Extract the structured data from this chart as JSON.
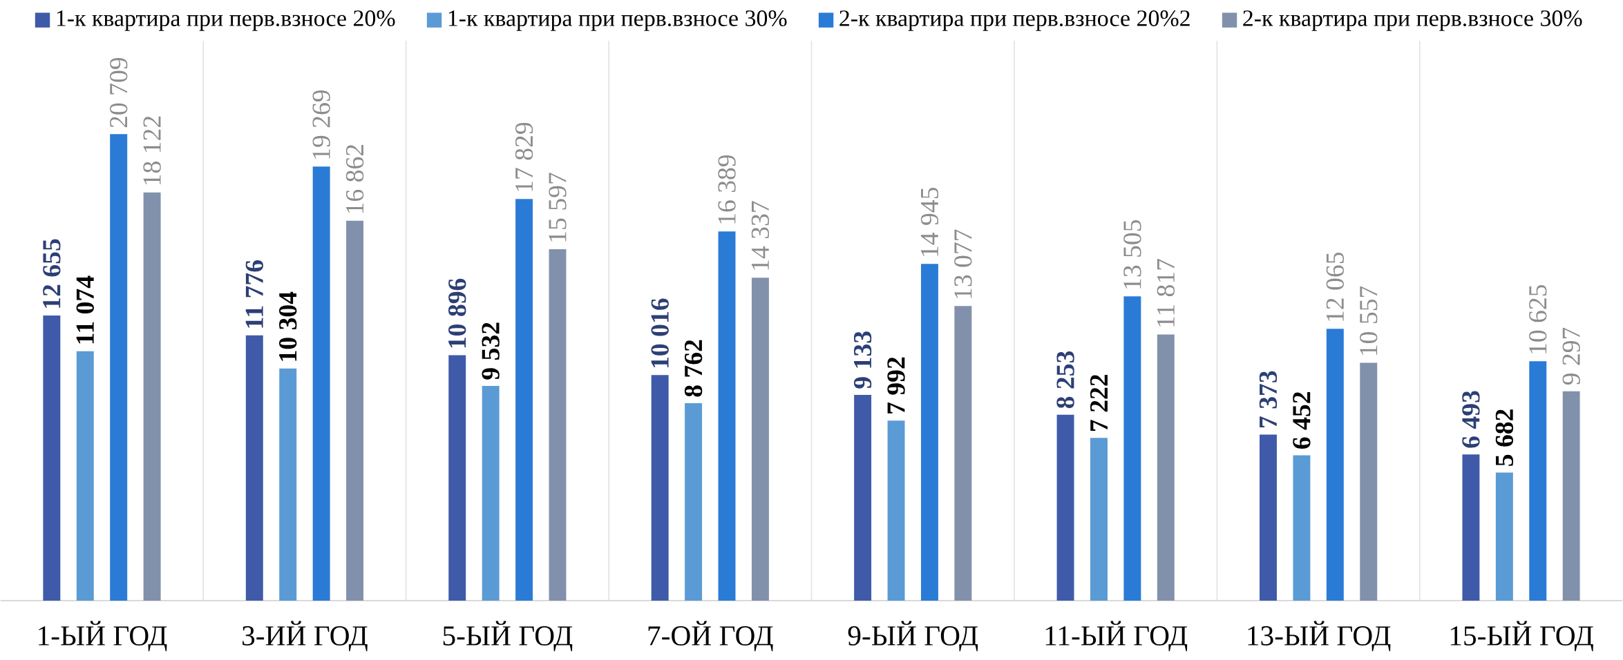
{
  "chart_data": {
    "type": "bar",
    "categories": [
      "1-ЫЙ ГОД",
      "3-ИЙ ГОД",
      "5-ЫЙ ГОД",
      "7-ОЙ ГОД",
      "9-ЫЙ ГОД",
      "11-ЫЙ ГОД",
      "13-ЫЙ ГОД",
      "15-ЫЙ ГОД"
    ],
    "legend": "top",
    "series": [
      {
        "name": "1-к квартира при перв.взносе 20%",
        "color": "#3f5aa8",
        "values": [
          12655,
          11776,
          10896,
          10016,
          9133,
          8253,
          7373,
          6493
        ],
        "value_labels": [
          "12 655",
          "11 776",
          "10 896",
          "10 016",
          "9 133",
          "8 253",
          "7 373",
          "6 493"
        ]
      },
      {
        "name": "1-к квартира при перв.взносе 30%",
        "color": "#5b9bd5",
        "values": [
          11074,
          10304,
          9532,
          8762,
          7992,
          7222,
          6452,
          5682
        ],
        "value_labels": [
          "11 074",
          "10 304",
          "9 532",
          "8 762",
          "7 992",
          "7 222",
          "6 452",
          "5 682"
        ]
      },
      {
        "name": "2-к квартира при перв.взносе 20%2",
        "color": "#2a7bd6",
        "values": [
          20709,
          19269,
          17829,
          16389,
          14945,
          13505,
          12065,
          10625
        ],
        "value_labels": [
          "20 709",
          "19 269",
          "17 829",
          "16 389",
          "14 945",
          "13 505",
          "12 065",
          "10 625"
        ]
      },
      {
        "name": "2-к квартира при перв.взносе 30%",
        "color": "#8291ab",
        "values": [
          18122,
          16862,
          15597,
          14337,
          13077,
          11817,
          10557,
          9297
        ],
        "value_labels": [
          "18 122",
          "16 862",
          "15 597",
          "14 337",
          "13 077",
          "11 817",
          "10 557",
          "9 297"
        ]
      }
    ]
  }
}
